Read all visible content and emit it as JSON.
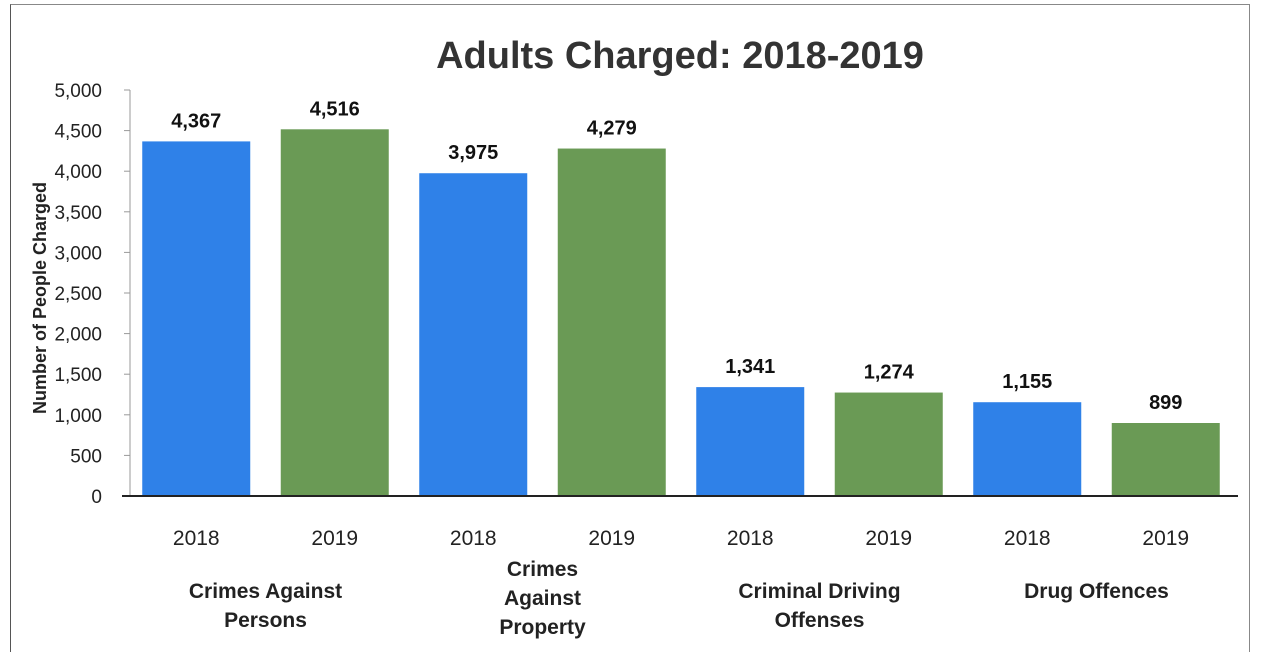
{
  "chart_data": {
    "type": "bar",
    "title": "Adults Charged: 2018-2019",
    "ylabel": "Number of People Charged",
    "xlabel": "",
    "ylim": [
      0,
      5000
    ],
    "yticks": [
      0,
      500,
      1000,
      1500,
      2000,
      2500,
      3000,
      3500,
      4000,
      4500,
      5000
    ],
    "ytick_labels": [
      "0",
      "500",
      "1,000",
      "1,500",
      "2,000",
      "2,500",
      "3,000",
      "3,500",
      "4,000",
      "4,500",
      "5,000"
    ],
    "grid": false,
    "colors": {
      "2018": "#2f81e8",
      "2019": "#6a9a55"
    },
    "bars": [
      {
        "group": "Crimes Against Persons",
        "year": "2018",
        "value": 4367,
        "label": "4,367"
      },
      {
        "group": "Crimes Against Persons",
        "year": "2019",
        "value": 4516,
        "label": "4,516"
      },
      {
        "group": "Crimes Against Property",
        "year": "2018",
        "value": 3975,
        "label": "3,975"
      },
      {
        "group": "Crimes Against Property",
        "year": "2019",
        "value": 4279,
        "label": "4,279"
      },
      {
        "group": "Criminal Driving Offenses",
        "year": "2018",
        "value": 1341,
        "label": "1,341"
      },
      {
        "group": "Criminal Driving Offenses",
        "year": "2019",
        "value": 1274,
        "label": "1,274"
      },
      {
        "group": "Drug Offences",
        "year": "2018",
        "value": 1155,
        "label": "1,155"
      },
      {
        "group": "Drug Offences",
        "year": "2019",
        "value": 899,
        "label": "899"
      }
    ],
    "groups": [
      {
        "name": "Crimes Against Persons",
        "lines": [
          "Crimes Against",
          "Persons"
        ]
      },
      {
        "name": "Crimes Against Property",
        "lines": [
          "Crimes",
          "Against",
          "Property"
        ]
      },
      {
        "name": "Criminal Driving Offenses",
        "lines": [
          "Criminal Driving",
          "Offenses"
        ]
      },
      {
        "name": "Drug Offences",
        "lines": [
          "Drug Offences"
        ]
      }
    ]
  }
}
